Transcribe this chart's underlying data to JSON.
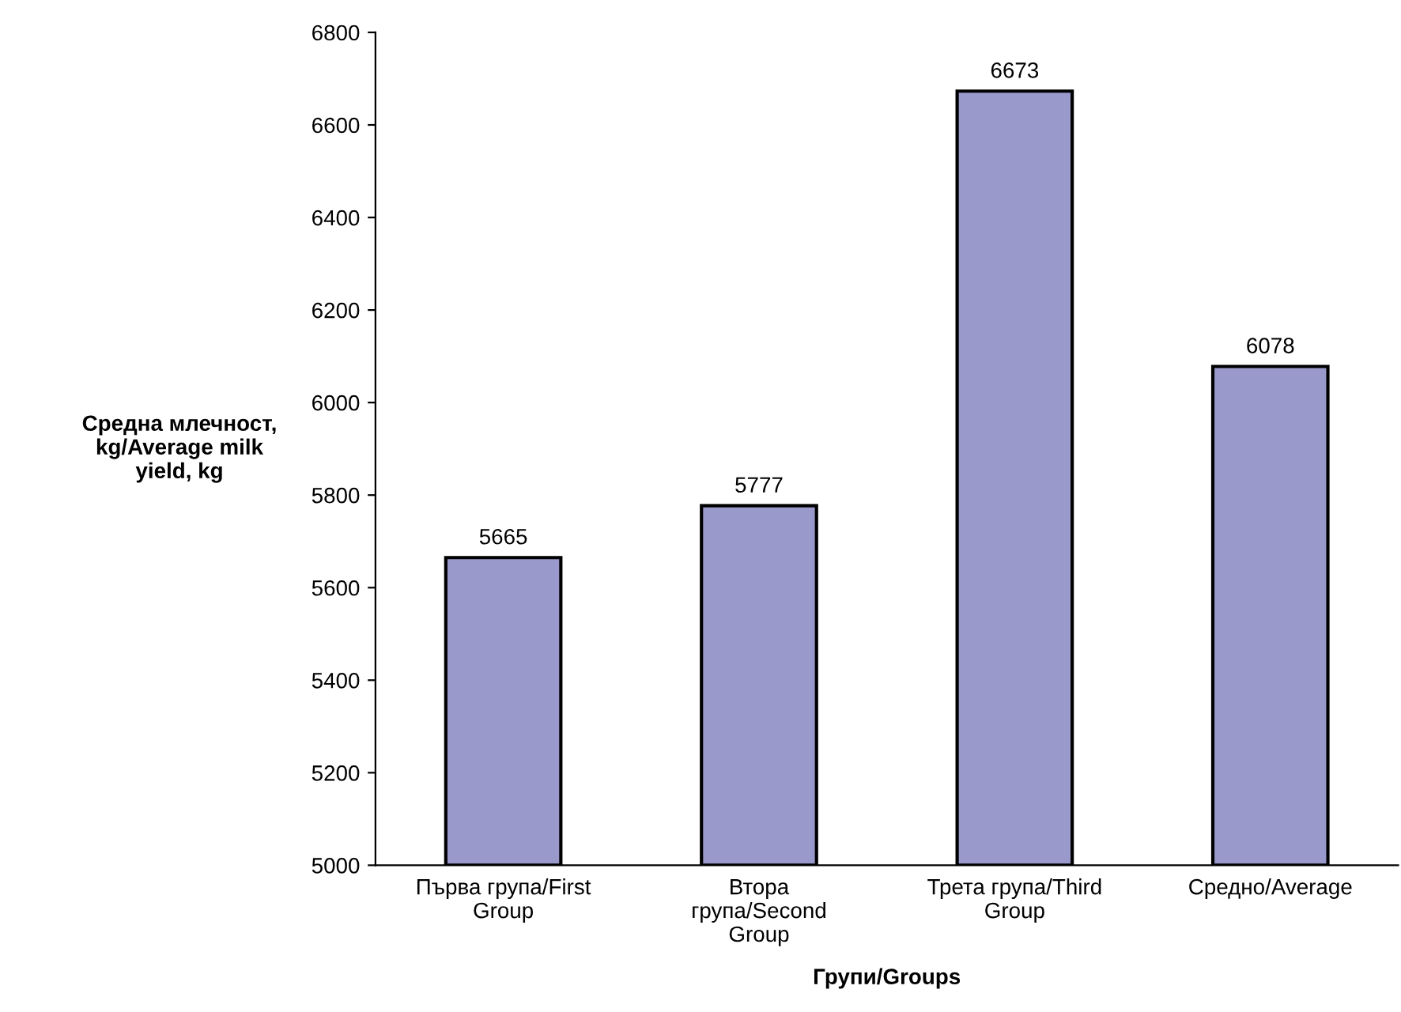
{
  "chart_data": {
    "type": "bar",
    "categories": [
      "Първа група/First\nGroup",
      "Втора\nгрупа/Second\nGroup",
      "Трета група/Third\nGroup",
      "Средно/Average"
    ],
    "values": [
      5665,
      5777,
      6673,
      6078
    ],
    "color": "#9999cc",
    "xlabel": "Групи/Groups",
    "ylabel": "Средна млечност,\nkg/Average milk\nyield, kg",
    "ylim": [
      5000,
      6800
    ],
    "yticks": [
      5000,
      5200,
      5400,
      5600,
      5800,
      6000,
      6200,
      6400,
      6600,
      6800
    ],
    "data_labels": true,
    "grid": false,
    "legend": false
  }
}
